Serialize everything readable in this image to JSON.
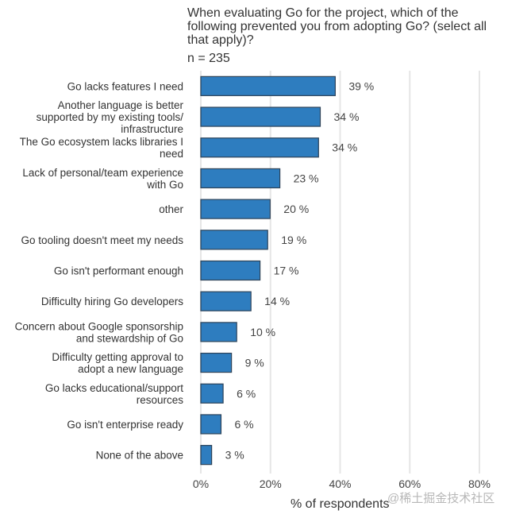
{
  "chart_data": {
    "type": "bar",
    "orientation": "horizontal",
    "title": "When evaluating Go for the project, which of the following prevented you from adopting Go? (select all that apply)?",
    "subtitle": "n = 235",
    "xlabel": "% of respondents",
    "ylabel": "",
    "xlim": [
      0,
      80
    ],
    "xticks": [
      0,
      20,
      40,
      60,
      80
    ],
    "xtick_labels": [
      "0%",
      "20%",
      "40%",
      "60%",
      "80%"
    ],
    "grid": "vertical",
    "legend": "none",
    "bar_color": "#2e7dbf",
    "bar_edge_color": "#2d4359",
    "categories": [
      [
        "Go lacks features I need"
      ],
      [
        "Another language is better",
        "supported by my existing tools/",
        "infrastructure"
      ],
      [
        "The Go ecosystem lacks libraries I",
        "need"
      ],
      [
        "Lack of personal/team experience",
        "with Go"
      ],
      [
        "other"
      ],
      [
        "Go tooling doesn't meet my needs"
      ],
      [
        "Go isn't performant enough"
      ],
      [
        "Difficulty hiring Go developers"
      ],
      [
        "Concern about Google sponsorship",
        "and stewardship of Go"
      ],
      [
        "Difficulty getting approval to",
        "adopt a new language"
      ],
      [
        "Go lacks educational/support",
        "resources"
      ],
      [
        "Go isn't enterprise ready"
      ],
      [
        "None of the above"
      ]
    ],
    "values": [
      39,
      34,
      34,
      23,
      20,
      19,
      17,
      14,
      10,
      9,
      6,
      6,
      3
    ],
    "value_labels": [
      "39 %",
      "34 %",
      "34 %",
      "23 %",
      "20 %",
      "19 %",
      "17 %",
      "14 %",
      "10 %",
      "9 %",
      "6 %",
      "6 %",
      "3 %"
    ],
    "precise_values": [
      38.6,
      34.3,
      33.8,
      22.7,
      19.9,
      19.2,
      17.0,
      14.4,
      10.3,
      8.8,
      6.4,
      5.8,
      3.1
    ]
  },
  "watermark": "@稀土掘金技术社区"
}
